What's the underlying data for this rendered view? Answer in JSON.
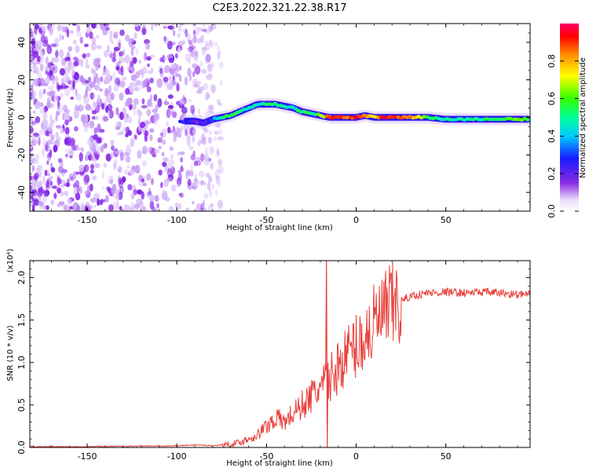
{
  "title": "C2E3.2022.321.22.38.R17",
  "chart_data": [
    {
      "type": "heatmap",
      "xlabel": "Height of straight line (km)",
      "ylabel": "Frequency (Hz)",
      "xlim": [
        -182,
        97
      ],
      "ylim": [
        -50,
        50
      ],
      "xticks": [
        -150,
        -100,
        -50,
        0,
        50
      ],
      "yticks": [
        -40,
        -20,
        0,
        20,
        40
      ],
      "colorbar": {
        "label": "Normalized spectral amplitude",
        "range": [
          0,
          1
        ],
        "ticks": [
          "0.0",
          "0.2",
          "0.4",
          "0.6",
          "0.8"
        ]
      },
      "ridge": {
        "x": [
          -100,
          -95,
          -90,
          -85,
          -80,
          -75,
          -70,
          -65,
          -60,
          -55,
          -50,
          -45,
          -40,
          -35,
          -30,
          -25,
          -20,
          -15,
          -10,
          -5,
          0,
          5,
          10,
          15,
          20,
          30,
          40,
          50,
          60,
          70,
          80,
          90,
          97
        ],
        "freq": [
          -3,
          -2,
          -2,
          -3,
          -1,
          0,
          1,
          3,
          5,
          7,
          7,
          7,
          6,
          5,
          3,
          2,
          1,
          0,
          0,
          0,
          0,
          1,
          0,
          0,
          0,
          0,
          0,
          -1,
          -1,
          -1,
          -1,
          -1,
          -1
        ],
        "amplitude": [
          0.3,
          0.25,
          0.2,
          0.22,
          0.35,
          0.5,
          0.55,
          0.5,
          0.45,
          0.45,
          0.5,
          0.55,
          0.5,
          0.45,
          0.55,
          0.5,
          0.6,
          0.9,
          0.9,
          0.85,
          0.95,
          0.85,
          0.7,
          0.95,
          0.9,
          0.85,
          0.55,
          0.5,
          0.5,
          0.5,
          0.55,
          0.6,
          0.6
        ]
      },
      "noise_region_xlim": [
        -182,
        -75
      ]
    },
    {
      "type": "line",
      "xlabel": "Height of straight line (km)",
      "ylabel": "SNR (10 * v/v)",
      "y_multiplier": "(x10⁴)",
      "xlim": [
        -182,
        97
      ],
      "ylim": [
        0,
        2.2
      ],
      "xticks": [
        -150,
        -100,
        -50,
        0,
        50
      ],
      "yticks": [
        0.0,
        0.5,
        1.0,
        1.5,
        2.0
      ],
      "series": [
        {
          "color": "#e8403a",
          "x": [
            -182,
            -150,
            -100,
            -90,
            -80,
            -70,
            -65,
            -60,
            -55,
            -50,
            -45,
            -40,
            -35,
            -30,
            -25,
            -20,
            -15,
            -10,
            -5,
            0,
            5,
            10,
            15,
            20,
            25,
            30,
            40,
            50,
            60,
            70,
            80,
            90,
            97
          ],
          "values": [
            0.01,
            0.01,
            0.02,
            0.03,
            0.02,
            0.04,
            0.06,
            0.1,
            0.15,
            0.25,
            0.35,
            0.3,
            0.4,
            0.5,
            0.6,
            0.7,
            0.8,
            0.95,
            1.1,
            1.2,
            1.3,
            1.45,
            1.55,
            1.65,
            1.72,
            1.78,
            1.82,
            1.83,
            1.82,
            1.83,
            1.82,
            1.8,
            1.8
          ]
        }
      ],
      "spike": {
        "x": -17,
        "value": 2.2
      }
    }
  ]
}
